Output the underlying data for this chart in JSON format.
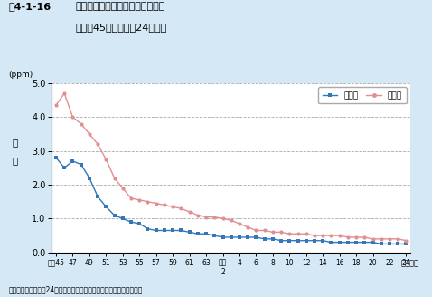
{
  "title_bold": "図4-1-16",
  "title_main": "一酸化炭素濃度の年平均値の推移",
  "title_sub": "（昭和45年度〜平成24年度）",
  "ylabel_top": "(ppm)",
  "ylabel_side": "濃\n度",
  "xlabel_note": "（年度）",
  "footer": "資料：環境省「平成24年度大気汚染状況について（報道発表資料）」",
  "background_color": "#d4e9f5",
  "plot_bg_color": "#ffffff",
  "ylim": [
    0.0,
    5.0
  ],
  "yticks": [
    0.0,
    1.0,
    2.0,
    3.0,
    4.0,
    5.0
  ],
  "legend_labels": [
    "一般局",
    "自排局"
  ],
  "ippan_color": "#3377bb",
  "jihai_color": "#e09090",
  "ippan_marker": "s",
  "jihai_marker": "o",
  "x_labels": [
    "昭和45",
    "47",
    "49",
    "51",
    "53",
    "55",
    "57",
    "59",
    "61",
    "63",
    "平成\n2",
    "4",
    "6",
    "8",
    "10",
    "12",
    "14",
    "16",
    "18",
    "20",
    "22",
    "24"
  ],
  "x_positions": [
    0,
    2,
    4,
    6,
    8,
    10,
    12,
    14,
    16,
    18,
    20,
    22,
    24,
    26,
    28,
    30,
    32,
    34,
    36,
    38,
    40,
    42
  ],
  "ippan_y": [
    2.8,
    2.5,
    2.7,
    2.6,
    2.2,
    1.65,
    1.35,
    1.1,
    1.0,
    0.9,
    0.85,
    0.7,
    0.65,
    0.65,
    0.65,
    0.65,
    0.6,
    0.55,
    0.55,
    0.5,
    0.45,
    0.45,
    0.45,
    0.45,
    0.45,
    0.4,
    0.4,
    0.35,
    0.35,
    0.35,
    0.35,
    0.35,
    0.35,
    0.3,
    0.3,
    0.3,
    0.3,
    0.3,
    0.3,
    0.25,
    0.25,
    0.25,
    0.25
  ],
  "jihai_y": [
    4.35,
    4.7,
    4.0,
    3.8,
    3.5,
    3.2,
    2.75,
    2.2,
    1.9,
    1.6,
    1.55,
    1.5,
    1.45,
    1.4,
    1.35,
    1.3,
    1.2,
    1.1,
    1.05,
    1.05,
    1.0,
    0.95,
    0.85,
    0.75,
    0.65,
    0.65,
    0.6,
    0.6,
    0.55,
    0.55,
    0.55,
    0.5,
    0.5,
    0.5,
    0.5,
    0.45,
    0.45,
    0.45,
    0.4,
    0.4,
    0.4,
    0.4,
    0.35
  ],
  "n_points": 43
}
